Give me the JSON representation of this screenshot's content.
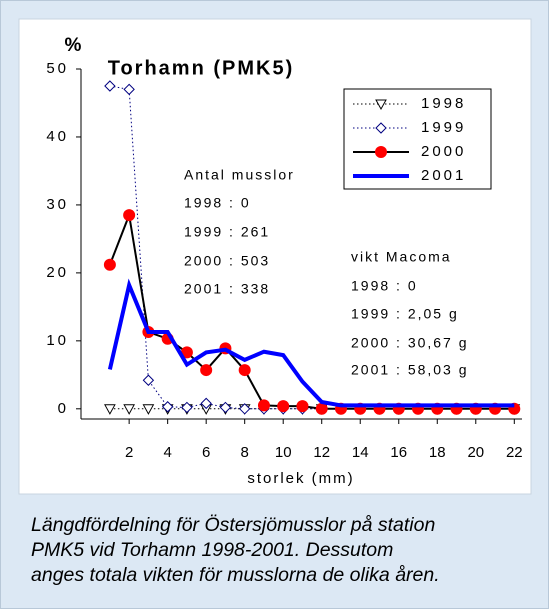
{
  "chart_data": {
    "type": "line",
    "title": "Torhamn (PMK5)",
    "ylabel": "%",
    "xlabel": "storlek (mm)",
    "x": [
      1,
      2,
      3,
      4,
      5,
      6,
      7,
      8,
      9,
      10,
      11,
      12,
      13,
      14,
      15,
      16,
      17,
      18,
      19,
      20,
      21,
      22
    ],
    "xlim": [
      -0.5,
      22.4
    ],
    "xticks": [
      2,
      4,
      6,
      8,
      10,
      12,
      14,
      16,
      18,
      20,
      22
    ],
    "ylim": [
      -1.5,
      50
    ],
    "yticks": [
      0,
      10,
      20,
      30,
      40,
      50
    ],
    "grid": false,
    "legend": "upper right",
    "series": [
      {
        "name": "1998",
        "color": "#000000",
        "values": [
          0,
          0,
          0,
          0,
          0,
          0,
          0,
          0,
          0,
          0,
          0,
          0,
          0,
          0,
          0,
          0,
          0,
          0,
          0,
          0,
          0,
          0
        ]
      },
      {
        "name": "1999",
        "color": "#000080",
        "values": [
          47.5,
          47,
          4.2,
          0.3,
          0.2,
          0.8,
          0.2,
          0,
          0,
          0,
          0,
          0,
          0,
          0,
          0,
          0,
          0,
          0,
          0,
          0,
          0,
          0
        ]
      },
      {
        "name": "2000",
        "color": "#000000",
        "marker_color": "#ff0000",
        "values": [
          21.2,
          28.5,
          11.3,
          10.3,
          8.3,
          5.7,
          8.9,
          5.7,
          0.5,
          0.4,
          0.4,
          0,
          0,
          0,
          0,
          0,
          0,
          0,
          0,
          0,
          0,
          0
        ]
      },
      {
        "name": "2001",
        "color": "#0000ff",
        "values": [
          5.8,
          18.2,
          11.3,
          11.3,
          6.5,
          8.3,
          8.7,
          7.2,
          8.4,
          7.9,
          4,
          1,
          0.5,
          0.5,
          0.5,
          0.5,
          0.5,
          0.5,
          0.5,
          0.5,
          0.5,
          0.5
        ]
      }
    ],
    "annotations": [
      "Antal musslor",
      "1998 : 0",
      "1999 : 261",
      "2000 : 503",
      "2001 : 338",
      "vikt Macoma",
      "1998 : 0",
      "1999 : 2,05 g",
      "2000 : 30,67 g",
      "2001 : 58,03 g"
    ],
    "caption": [
      "Längdfördelning för Östersjömusslor på station",
      "PMK5 vid Torhamn 1998-2001. Dessutom",
      "anges totala vikten för musslorna de olika åren."
    ]
  }
}
